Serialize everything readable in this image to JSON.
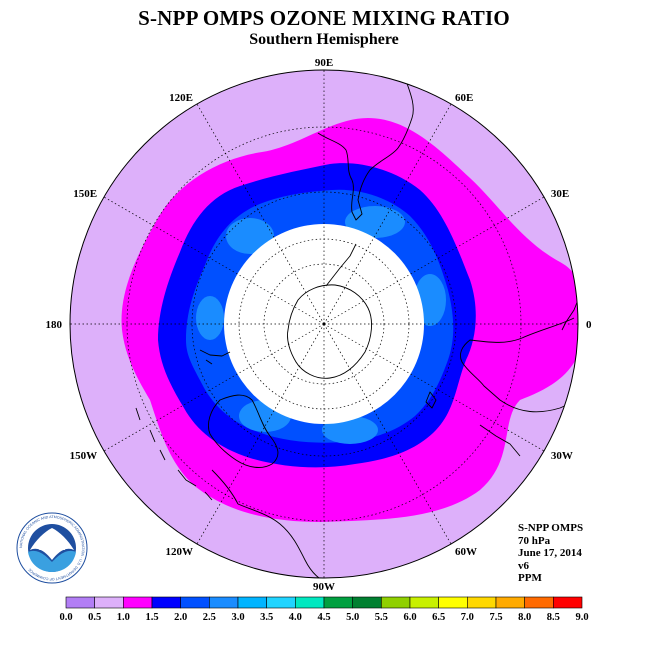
{
  "title": "S-NPP OMPS OZONE MIXING RATIO",
  "subtitle": "Southern Hemisphere",
  "info": {
    "instrument": "S-NPP OMPS",
    "pressure": "70 hPa",
    "date": "June 17, 2014",
    "version": "v6",
    "units": "PPM"
  },
  "logo": {
    "name": "noaa-logo",
    "text": "NOAA",
    "ring_text": "NATIONAL OCEANIC AND ATMOSPHERIC ADMINISTRATION · U.S. DEPARTMENT OF COMMERCE"
  },
  "longitude_labels": [
    {
      "text": "0",
      "lon": 0
    },
    {
      "text": "30W",
      "lon": -30
    },
    {
      "text": "60W",
      "lon": -60
    },
    {
      "text": "90W",
      "lon": -90
    },
    {
      "text": "120W",
      "lon": -120
    },
    {
      "text": "150W",
      "lon": -150
    },
    {
      "text": "180",
      "lon": 180
    },
    {
      "text": "150E",
      "lon": 150
    },
    {
      "text": "120E",
      "lon": 120
    },
    {
      "text": "90E",
      "lon": 90
    },
    {
      "text": "60E",
      "lon": 60
    },
    {
      "text": "30E",
      "lon": 30
    }
  ],
  "colorbar": {
    "ticks": [
      "0.0",
      "0.5",
      "1.0",
      "1.5",
      "2.0",
      "2.5",
      "3.0",
      "3.5",
      "4.0",
      "4.5",
      "5.0",
      "5.5",
      "6.0",
      "6.5",
      "7.0",
      "7.5",
      "8.0",
      "8.5",
      "9.0"
    ],
    "colors": [
      "#b27ef5",
      "#ddb0fa",
      "#ff00ff",
      "#0000ff",
      "#0050ff",
      "#1a8cff",
      "#00b4ff",
      "#20d4ff",
      "#00e8c0",
      "#00a040",
      "#008030",
      "#90d000",
      "#c8f000",
      "#ffff00",
      "#ffd800",
      "#ffaa00",
      "#ff6a00",
      "#ff0000",
      "#8b5a3c"
    ]
  },
  "chart_data": {
    "type": "heatmap",
    "projection": "south-polar-stereographic",
    "variable": "ozone mixing ratio",
    "units": "PPM",
    "pressure_level": "70 hPa",
    "date": "June 17, 2014",
    "missing_region": "south of ~65S (polar night, no data)",
    "levels": [
      {
        "range": [
          0.5,
          1.0
        ],
        "region": "outer mid-latitudes",
        "color": "#ddb0fa"
      },
      {
        "range": [
          1.0,
          1.5
        ],
        "region": "mid-latitude wave ring",
        "color": "#ff00ff"
      },
      {
        "range": [
          1.5,
          2.0
        ],
        "region": "vortex edge ring",
        "color": "#0000ff"
      },
      {
        "range": [
          2.0,
          2.5
        ],
        "region": "inner ring",
        "color": "#0050ff"
      },
      {
        "range": [
          2.5,
          3.0
        ],
        "region": "patches near vortex edge",
        "color": "#1a8cff"
      }
    ]
  }
}
